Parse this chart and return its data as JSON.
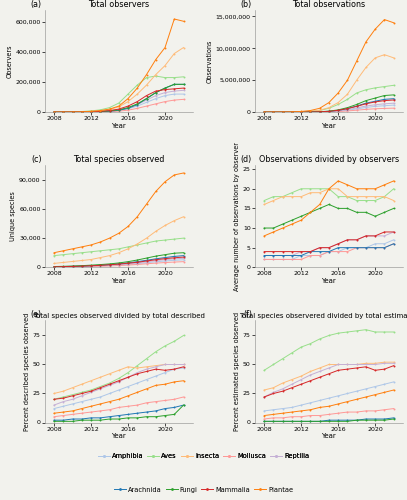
{
  "years": [
    2008,
    2009,
    2010,
    2011,
    2012,
    2013,
    2014,
    2015,
    2016,
    2017,
    2018,
    2019,
    2020,
    2021,
    2022
  ],
  "colors": {
    "Amphibia": "#aec7e8",
    "Aves": "#98df8a",
    "Insecta": "#ffbb78",
    "Mollusca": "#ff9896",
    "Reptilia": "#c5b0d5",
    "Arachnida": "#1f77b4",
    "Fungi": "#2ca02c",
    "Mammalia": "#d62728",
    "Plantae": "#ff7f0e"
  },
  "legend_order": [
    "Amphibia",
    "Aves",
    "Insecta",
    "Mollusca",
    "Reptilia",
    "Arachnida",
    "Fungi",
    "Mammalia",
    "Plantae"
  ],
  "total_observers": {
    "Aves": [
      500,
      1000,
      2000,
      4000,
      8000,
      15000,
      30000,
      60000,
      120000,
      180000,
      230000,
      240000,
      230000,
      230000,
      235000
    ],
    "Plantae": [
      200,
      500,
      1000,
      2000,
      5000,
      10000,
      20000,
      40000,
      90000,
      160000,
      250000,
      350000,
      430000,
      620000,
      605000
    ],
    "Insecta": [
      300,
      600,
      1200,
      2500,
      5000,
      9000,
      18000,
      35000,
      70000,
      120000,
      180000,
      250000,
      310000,
      390000,
      430000
    ],
    "Arachnida": [
      100,
      200,
      400,
      800,
      1500,
      3000,
      6000,
      12000,
      25000,
      50000,
      90000,
      130000,
      160000,
      185000,
      185000
    ],
    "Fungi": [
      100,
      200,
      500,
      1000,
      2000,
      4000,
      8000,
      15000,
      30000,
      55000,
      90000,
      130000,
      160000,
      185000,
      185000
    ],
    "Mammalia": [
      100,
      300,
      600,
      1200,
      2500,
      5000,
      10000,
      20000,
      40000,
      70000,
      110000,
      140000,
      150000,
      155000,
      160000
    ],
    "Reptilia": [
      80,
      200,
      400,
      900,
      1800,
      3500,
      7000,
      14000,
      28000,
      50000,
      80000,
      110000,
      130000,
      140000,
      145000
    ],
    "Amphibia": [
      80,
      180,
      350,
      700,
      1400,
      2800,
      5500,
      11000,
      22000,
      40000,
      65000,
      90000,
      110000,
      120000,
      120000
    ],
    "Mollusca": [
      50,
      100,
      200,
      400,
      800,
      1600,
      3200,
      6500,
      13000,
      25000,
      40000,
      55000,
      70000,
      80000,
      85000
    ]
  },
  "total_observations": {
    "Plantae": [
      2000,
      5000,
      15000,
      40000,
      100000,
      250000,
      600000,
      1500000,
      3000000,
      5000000,
      8000000,
      11000000,
      13000000,
      14500000,
      14000000
    ],
    "Insecta": [
      1500,
      3000,
      8000,
      20000,
      50000,
      120000,
      300000,
      700000,
      1500000,
      2800000,
      5000000,
      7000000,
      8500000,
      9000000,
      8500000
    ],
    "Aves": [
      1000,
      2500,
      6000,
      15000,
      40000,
      100000,
      250000,
      600000,
      1200000,
      2000000,
      3000000,
      3500000,
      3800000,
      4000000,
      4200000
    ],
    "Fungi": [
      200,
      500,
      1500,
      4000,
      10000,
      25000,
      60000,
      150000,
      350000,
      700000,
      1200000,
      1800000,
      2200000,
      2600000,
      2700000
    ],
    "Arachnida": [
      200,
      400,
      1000,
      3000,
      8000,
      20000,
      50000,
      120000,
      280000,
      550000,
      950000,
      1400000,
      1700000,
      2000000,
      2100000
    ],
    "Mammalia": [
      200,
      400,
      1000,
      3000,
      8000,
      20000,
      50000,
      120000,
      280000,
      550000,
      900000,
      1300000,
      1600000,
      1800000,
      1900000
    ],
    "Reptilia": [
      100,
      300,
      800,
      2000,
      5000,
      12000,
      30000,
      75000,
      180000,
      380000,
      650000,
      950000,
      1150000,
      1300000,
      1400000
    ],
    "Amphibia": [
      100,
      250,
      600,
      1500,
      4000,
      10000,
      25000,
      60000,
      140000,
      290000,
      500000,
      720000,
      900000,
      1000000,
      1100000
    ],
    "Mollusca": [
      50,
      150,
      400,
      1000,
      2500,
      6000,
      15000,
      40000,
      90000,
      180000,
      300000,
      430000,
      520000,
      580000,
      620000
    ]
  },
  "total_species": {
    "Plantae": [
      15000,
      17000,
      19000,
      21000,
      23000,
      26000,
      30000,
      35000,
      42000,
      52000,
      65000,
      78000,
      88000,
      95000,
      97000
    ],
    "Aves": [
      12000,
      13000,
      14000,
      15000,
      16000,
      17000,
      18000,
      19000,
      21000,
      23000,
      25000,
      27000,
      28000,
      29000,
      30000
    ],
    "Insecta": [
      4000,
      5000,
      6000,
      7000,
      8000,
      10000,
      12000,
      15000,
      19000,
      24000,
      30000,
      37000,
      43000,
      48000,
      52000
    ],
    "Fungi": [
      800,
      1000,
      1300,
      1700,
      2200,
      2800,
      3500,
      4500,
      5800,
      7500,
      9500,
      11500,
      13000,
      14500,
      15000
    ],
    "Arachnida": [
      600,
      800,
      1000,
      1300,
      1700,
      2200,
      2800,
      3600,
      4600,
      5800,
      7200,
      8700,
      10000,
      11200,
      12000
    ],
    "Mammalia": [
      500,
      700,
      900,
      1200,
      1600,
      2000,
      2600,
      3300,
      4200,
      5200,
      6500,
      7800,
      8900,
      9800,
      10500
    ],
    "Reptilia": [
      400,
      550,
      700,
      950,
      1300,
      1700,
      2200,
      2800,
      3600,
      4600,
      5700,
      6900,
      7900,
      8700,
      9300
    ],
    "Amphibia": [
      350,
      450,
      600,
      800,
      1100,
      1400,
      1800,
      2300,
      3000,
      3800,
      4700,
      5700,
      6500,
      7200,
      7700
    ],
    "Mollusca": [
      300,
      400,
      500,
      650,
      850,
      1100,
      1400,
      1800,
      2300,
      2900,
      3600,
      4300,
      4900,
      5400,
      5800
    ]
  },
  "obs_per_observer": {
    "Plantae": [
      8,
      9,
      10,
      11,
      12,
      14,
      16,
      20,
      22,
      21,
      20,
      20,
      20,
      21,
      22
    ],
    "Insecta": [
      16,
      17,
      18,
      18,
      18,
      19,
      19,
      20,
      20,
      18,
      18,
      18,
      18,
      18,
      17
    ],
    "Aves": [
      17,
      18,
      18,
      19,
      20,
      20,
      20,
      20,
      18,
      18,
      17,
      17,
      17,
      18,
      20
    ],
    "Fungi": [
      10,
      10,
      11,
      12,
      13,
      14,
      15,
      16,
      15,
      15,
      14,
      14,
      13,
      14,
      15
    ],
    "Arachnida": [
      3,
      3,
      3,
      3,
      3,
      4,
      4,
      4,
      5,
      5,
      5,
      5,
      5,
      5,
      6
    ],
    "Mammalia": [
      4,
      4,
      4,
      4,
      4,
      4,
      5,
      5,
      6,
      7,
      7,
      8,
      8,
      9,
      9
    ],
    "Reptilia": [
      3,
      3,
      3,
      3,
      4,
      4,
      5,
      5,
      6,
      7,
      7,
      8,
      8,
      8,
      9
    ],
    "Amphibia": [
      2,
      2,
      2,
      2,
      3,
      3,
      3,
      4,
      4,
      5,
      5,
      5,
      6,
      6,
      7
    ],
    "Mollusca": [
      2,
      2,
      2,
      2,
      2,
      3,
      3,
      4,
      4,
      4,
      5,
      5,
      5,
      5,
      6
    ]
  },
  "pct_described": {
    "Aves": [
      20,
      22,
      24,
      26,
      28,
      31,
      34,
      38,
      43,
      49,
      55,
      61,
      66,
      70,
      75
    ],
    "Insecta": [
      25,
      27,
      30,
      33,
      36,
      39,
      42,
      45,
      48,
      47,
      48,
      49,
      50,
      50,
      50
    ],
    "Reptilia": [
      15,
      18,
      20,
      23,
      26,
      29,
      32,
      35,
      39,
      43,
      46,
      48,
      50,
      50,
      50
    ],
    "Mammalia": [
      20,
      21,
      23,
      25,
      27,
      30,
      33,
      36,
      39,
      42,
      44,
      46,
      45,
      46,
      48
    ],
    "Amphibia": [
      12,
      14,
      16,
      18,
      20,
      22,
      25,
      28,
      31,
      34,
      37,
      40,
      43,
      46,
      47
    ],
    "Arachnida": [
      2,
      2,
      3,
      3,
      4,
      4,
      5,
      6,
      7,
      8,
      9,
      10,
      12,
      13,
      15
    ],
    "Fungi": [
      1,
      1,
      1,
      2,
      2,
      2,
      3,
      3,
      4,
      4,
      5,
      5,
      6,
      7,
      15
    ],
    "Mollusca": [
      5,
      6,
      7,
      8,
      9,
      10,
      11,
      13,
      14,
      15,
      17,
      18,
      19,
      20,
      22
    ],
    "Plantae": [
      8,
      9,
      10,
      12,
      14,
      16,
      18,
      20,
      23,
      26,
      29,
      32,
      33,
      35,
      36
    ]
  },
  "pct_estimated": {
    "Aves": [
      45,
      50,
      55,
      60,
      65,
      68,
      72,
      75,
      77,
      78,
      79,
      80,
      78,
      78,
      78
    ],
    "Insecta": [
      28,
      30,
      34,
      37,
      40,
      44,
      47,
      50,
      50,
      50,
      50,
      51,
      51,
      52,
      52
    ],
    "Reptilia": [
      22,
      26,
      29,
      33,
      37,
      41,
      44,
      47,
      50,
      50,
      50,
      50,
      50,
      51,
      51
    ],
    "Mammalia": [
      22,
      25,
      27,
      30,
      33,
      36,
      39,
      42,
      45,
      46,
      47,
      48,
      45,
      46,
      49
    ],
    "Amphibia": [
      10,
      11,
      12,
      13,
      15,
      17,
      19,
      21,
      23,
      25,
      27,
      29,
      31,
      33,
      35
    ],
    "Arachnida": [
      1,
      1,
      1,
      1,
      1,
      1,
      1,
      2,
      2,
      2,
      2,
      3,
      3,
      3,
      4
    ],
    "Fungi": [
      1,
      1,
      1,
      1,
      1,
      1,
      1,
      1,
      1,
      1,
      2,
      2,
      2,
      2,
      3
    ],
    "Mollusca": [
      3,
      4,
      4,
      5,
      5,
      6,
      6,
      7,
      8,
      9,
      9,
      10,
      10,
      11,
      12
    ],
    "Plantae": [
      6,
      7,
      8,
      9,
      10,
      11,
      13,
      14,
      16,
      18,
      20,
      22,
      24,
      26,
      28
    ]
  },
  "bg_color": "#f2f2ed",
  "title_fontsize": 5.8,
  "axis_fontsize": 5.0,
  "tick_fontsize": 4.5,
  "legend_fontsize": 4.8
}
